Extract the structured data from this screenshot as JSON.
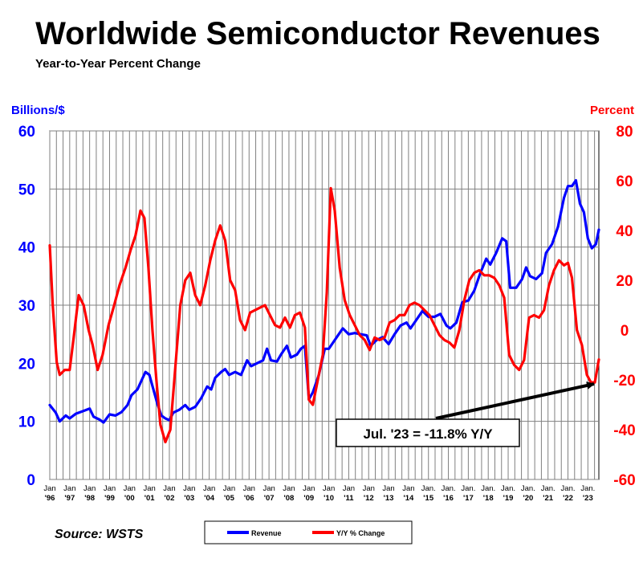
{
  "chart_data": {
    "type": "line",
    "title": "Worldwide Semiconductor Revenues",
    "subtitle": "Year-to-Year Percent Change",
    "ylabel_left": "Billions/$",
    "ylabel_right": "Percent",
    "ylim_left": [
      0,
      60
    ],
    "ylim_right": [
      -60,
      80
    ],
    "yticks_left": [
      "0",
      "10",
      "20",
      "30",
      "40",
      "50",
      "60"
    ],
    "yticks_right": [
      "-60",
      "-40",
      "-20",
      "0",
      "20",
      "40",
      "60",
      "80"
    ],
    "xlim": [
      1996.0,
      2023.55
    ],
    "xticks": [
      {
        "top": "Jan",
        "bottom": "'96"
      },
      {
        "top": "Jan",
        "bottom": "'97"
      },
      {
        "top": "Jan",
        "bottom": "'98"
      },
      {
        "top": "Jan",
        "bottom": "'99"
      },
      {
        "top": "Jan",
        "bottom": "'00"
      },
      {
        "top": "Jan",
        "bottom": "'01"
      },
      {
        "top": "Jan",
        "bottom": "'02"
      },
      {
        "top": "Jan",
        "bottom": "'03"
      },
      {
        "top": "Jan",
        "bottom": "'04"
      },
      {
        "top": "Jan",
        "bottom": "'05"
      },
      {
        "top": "Jan",
        "bottom": "'06"
      },
      {
        "top": "Jan",
        "bottom": "'07"
      },
      {
        "top": "Jan",
        "bottom": "'08"
      },
      {
        "top": "Jan",
        "bottom": "'09"
      },
      {
        "top": "Jan",
        "bottom": "'10"
      },
      {
        "top": "Jan",
        "bottom": "'11"
      },
      {
        "top": "Jan",
        "bottom": "'12"
      },
      {
        "top": "Jan",
        "bottom": "'13"
      },
      {
        "top": "Jan",
        "bottom": "'14"
      },
      {
        "top": "Jan.",
        "bottom": "'15"
      },
      {
        "top": "Jan.",
        "bottom": "'16"
      },
      {
        "top": "Jan.",
        "bottom": "'17"
      },
      {
        "top": "Jan.",
        "bottom": "'18"
      },
      {
        "top": "Jan.",
        "bottom": "'19"
      },
      {
        "top": "Jan.",
        "bottom": "'20"
      },
      {
        "top": "Jan.",
        "bottom": "'21"
      },
      {
        "top": "Jan.",
        "bottom": "'22"
      },
      {
        "top": "Jan.",
        "bottom": "'23"
      }
    ],
    "grid": true,
    "series": [
      {
        "name": "Revenue",
        "axis": "left",
        "color": "#0000ff",
        "points": [
          [
            1996.0,
            12.8
          ],
          [
            1996.3,
            11.5
          ],
          [
            1996.5,
            10.0
          ],
          [
            1996.8,
            11.0
          ],
          [
            1997.0,
            10.5
          ],
          [
            1997.3,
            11.3
          ],
          [
            1997.7,
            11.8
          ],
          [
            1998.0,
            12.2
          ],
          [
            1998.2,
            10.8
          ],
          [
            1998.5,
            10.3
          ],
          [
            1998.7,
            9.8
          ],
          [
            1999.0,
            11.2
          ],
          [
            1999.3,
            11.0
          ],
          [
            1999.6,
            11.6
          ],
          [
            1999.9,
            12.8
          ],
          [
            2000.1,
            14.5
          ],
          [
            2000.4,
            15.5
          ],
          [
            2000.6,
            17.0
          ],
          [
            2000.8,
            18.5
          ],
          [
            2001.0,
            18.0
          ],
          [
            2001.2,
            15.5
          ],
          [
            2001.4,
            13.0
          ],
          [
            2001.6,
            11.0
          ],
          [
            2001.8,
            10.5
          ],
          [
            2002.0,
            10.2
          ],
          [
            2002.2,
            11.5
          ],
          [
            2002.5,
            12.0
          ],
          [
            2002.8,
            12.8
          ],
          [
            2003.0,
            12.0
          ],
          [
            2003.3,
            12.5
          ],
          [
            2003.6,
            14.0
          ],
          [
            2003.9,
            16.0
          ],
          [
            2004.1,
            15.5
          ],
          [
            2004.3,
            17.5
          ],
          [
            2004.6,
            18.5
          ],
          [
            2004.8,
            19.0
          ],
          [
            2005.0,
            18.0
          ],
          [
            2005.3,
            18.5
          ],
          [
            2005.6,
            18.0
          ],
          [
            2005.9,
            20.5
          ],
          [
            2006.1,
            19.5
          ],
          [
            2006.4,
            20.0
          ],
          [
            2006.7,
            20.5
          ],
          [
            2006.9,
            22.5
          ],
          [
            2007.1,
            20.5
          ],
          [
            2007.4,
            20.3
          ],
          [
            2007.6,
            21.5
          ],
          [
            2007.9,
            23.0
          ],
          [
            2008.1,
            21.0
          ],
          [
            2008.4,
            21.5
          ],
          [
            2008.6,
            22.5
          ],
          [
            2008.8,
            23.0
          ],
          [
            2009.0,
            13.8
          ],
          [
            2009.2,
            15.0
          ],
          [
            2009.5,
            18.0
          ],
          [
            2009.8,
            22.5
          ],
          [
            2010.0,
            22.5
          ],
          [
            2010.2,
            23.5
          ],
          [
            2010.5,
            25.0
          ],
          [
            2010.7,
            26.0
          ],
          [
            2011.0,
            25.0
          ],
          [
            2011.3,
            25.2
          ],
          [
            2011.6,
            25.0
          ],
          [
            2011.9,
            24.8
          ],
          [
            2012.1,
            23.0
          ],
          [
            2012.4,
            24.0
          ],
          [
            2012.7,
            24.5
          ],
          [
            2013.0,
            23.3
          ],
          [
            2013.3,
            25.0
          ],
          [
            2013.6,
            26.5
          ],
          [
            2013.9,
            27.0
          ],
          [
            2014.1,
            26.0
          ],
          [
            2014.4,
            27.5
          ],
          [
            2014.7,
            29.0
          ],
          [
            2015.0,
            28.0
          ],
          [
            2015.3,
            28.0
          ],
          [
            2015.6,
            28.5
          ],
          [
            2015.9,
            26.5
          ],
          [
            2016.1,
            26.0
          ],
          [
            2016.4,
            27.0
          ],
          [
            2016.7,
            30.5
          ],
          [
            2017.0,
            30.8
          ],
          [
            2017.3,
            32.5
          ],
          [
            2017.6,
            35.5
          ],
          [
            2017.9,
            38.0
          ],
          [
            2018.1,
            37.0
          ],
          [
            2018.4,
            39.0
          ],
          [
            2018.7,
            41.5
          ],
          [
            2018.9,
            41.0
          ],
          [
            2019.1,
            33.0
          ],
          [
            2019.4,
            33.0
          ],
          [
            2019.7,
            34.5
          ],
          [
            2019.9,
            36.5
          ],
          [
            2020.1,
            35.0
          ],
          [
            2020.4,
            34.5
          ],
          [
            2020.7,
            35.5
          ],
          [
            2020.9,
            39.0
          ],
          [
            2021.2,
            40.5
          ],
          [
            2021.5,
            43.5
          ],
          [
            2021.8,
            48.5
          ],
          [
            2022.0,
            50.5
          ],
          [
            2022.2,
            50.5
          ],
          [
            2022.4,
            51.5
          ],
          [
            2022.6,
            47.5
          ],
          [
            2022.8,
            46.0
          ],
          [
            2023.0,
            41.5
          ],
          [
            2023.2,
            39.8
          ],
          [
            2023.4,
            40.5
          ],
          [
            2023.55,
            43.0
          ]
        ]
      },
      {
        "name": "Y/Y % Change",
        "axis": "right",
        "color": "#ff0000",
        "points": [
          [
            1996.0,
            34
          ],
          [
            1996.15,
            10
          ],
          [
            1996.35,
            -13
          ],
          [
            1996.5,
            -18
          ],
          [
            1996.75,
            -16
          ],
          [
            1997.0,
            -16
          ],
          [
            1997.2,
            -3
          ],
          [
            1997.45,
            14
          ],
          [
            1997.7,
            10
          ],
          [
            1997.95,
            0
          ],
          [
            1998.15,
            -6
          ],
          [
            1998.4,
            -16
          ],
          [
            1998.65,
            -10
          ],
          [
            1998.95,
            2
          ],
          [
            1999.2,
            9
          ],
          [
            1999.5,
            18
          ],
          [
            1999.8,
            25
          ],
          [
            2000.05,
            32
          ],
          [
            2000.3,
            38
          ],
          [
            2000.55,
            48
          ],
          [
            2000.75,
            45
          ],
          [
            2000.95,
            25
          ],
          [
            2001.15,
            0
          ],
          [
            2001.35,
            -20
          ],
          [
            2001.55,
            -38
          ],
          [
            2001.8,
            -45
          ],
          [
            2002.05,
            -40
          ],
          [
            2002.3,
            -15
          ],
          [
            2002.55,
            10
          ],
          [
            2002.8,
            20
          ],
          [
            2003.05,
            23
          ],
          [
            2003.3,
            14
          ],
          [
            2003.55,
            10
          ],
          [
            2003.8,
            18
          ],
          [
            2004.05,
            28
          ],
          [
            2004.3,
            36
          ],
          [
            2004.55,
            42
          ],
          [
            2004.8,
            36
          ],
          [
            2005.05,
            20
          ],
          [
            2005.3,
            16
          ],
          [
            2005.55,
            4
          ],
          [
            2005.8,
            0
          ],
          [
            2006.05,
            7
          ],
          [
            2006.3,
            8
          ],
          [
            2006.55,
            9
          ],
          [
            2006.8,
            10
          ],
          [
            2007.05,
            6
          ],
          [
            2007.3,
            2
          ],
          [
            2007.55,
            1
          ],
          [
            2007.8,
            5
          ],
          [
            2008.05,
            1
          ],
          [
            2008.3,
            6
          ],
          [
            2008.55,
            7
          ],
          [
            2008.8,
            1
          ],
          [
            2009.0,
            -28
          ],
          [
            2009.2,
            -30
          ],
          [
            2009.45,
            -20
          ],
          [
            2009.7,
            -10
          ],
          [
            2009.9,
            15
          ],
          [
            2010.1,
            57
          ],
          [
            2010.3,
            48
          ],
          [
            2010.55,
            25
          ],
          [
            2010.8,
            12
          ],
          [
            2011.05,
            6
          ],
          [
            2011.3,
            2
          ],
          [
            2011.55,
            -2
          ],
          [
            2011.8,
            -4
          ],
          [
            2012.05,
            -8
          ],
          [
            2012.3,
            -3
          ],
          [
            2012.55,
            -4
          ],
          [
            2012.8,
            -3
          ],
          [
            2013.05,
            3
          ],
          [
            2013.3,
            4
          ],
          [
            2013.55,
            6
          ],
          [
            2013.8,
            6
          ],
          [
            2014.05,
            10
          ],
          [
            2014.3,
            11
          ],
          [
            2014.55,
            10
          ],
          [
            2014.8,
            8
          ],
          [
            2015.05,
            6
          ],
          [
            2015.3,
            2
          ],
          [
            2015.55,
            -2
          ],
          [
            2015.8,
            -4
          ],
          [
            2016.05,
            -5
          ],
          [
            2016.3,
            -7
          ],
          [
            2016.55,
            0
          ],
          [
            2016.8,
            12
          ],
          [
            2017.05,
            20
          ],
          [
            2017.3,
            23
          ],
          [
            2017.55,
            24
          ],
          [
            2017.8,
            22
          ],
          [
            2018.05,
            22
          ],
          [
            2018.3,
            21
          ],
          [
            2018.55,
            18
          ],
          [
            2018.8,
            13
          ],
          [
            2019.05,
            -10
          ],
          [
            2019.3,
            -14
          ],
          [
            2019.55,
            -16
          ],
          [
            2019.8,
            -12
          ],
          [
            2020.05,
            5
          ],
          [
            2020.3,
            6
          ],
          [
            2020.55,
            5
          ],
          [
            2020.8,
            8
          ],
          [
            2021.05,
            18
          ],
          [
            2021.3,
            24
          ],
          [
            2021.55,
            28
          ],
          [
            2021.8,
            26
          ],
          [
            2022.0,
            27
          ],
          [
            2022.2,
            21
          ],
          [
            2022.45,
            0
          ],
          [
            2022.7,
            -6
          ],
          [
            2022.95,
            -18
          ],
          [
            2023.15,
            -21
          ],
          [
            2023.35,
            -21
          ],
          [
            2023.55,
            -11.8
          ]
        ]
      }
    ],
    "legend": [
      "Revenue",
      "Y/Y % Change"
    ],
    "legend_position": "bottom-center",
    "annotation": {
      "text": "Jul. '23 = -11.8% Y/Y",
      "x": 2023.55,
      "y": -11.8,
      "axis": "right"
    },
    "source": "Source: WSTS"
  }
}
